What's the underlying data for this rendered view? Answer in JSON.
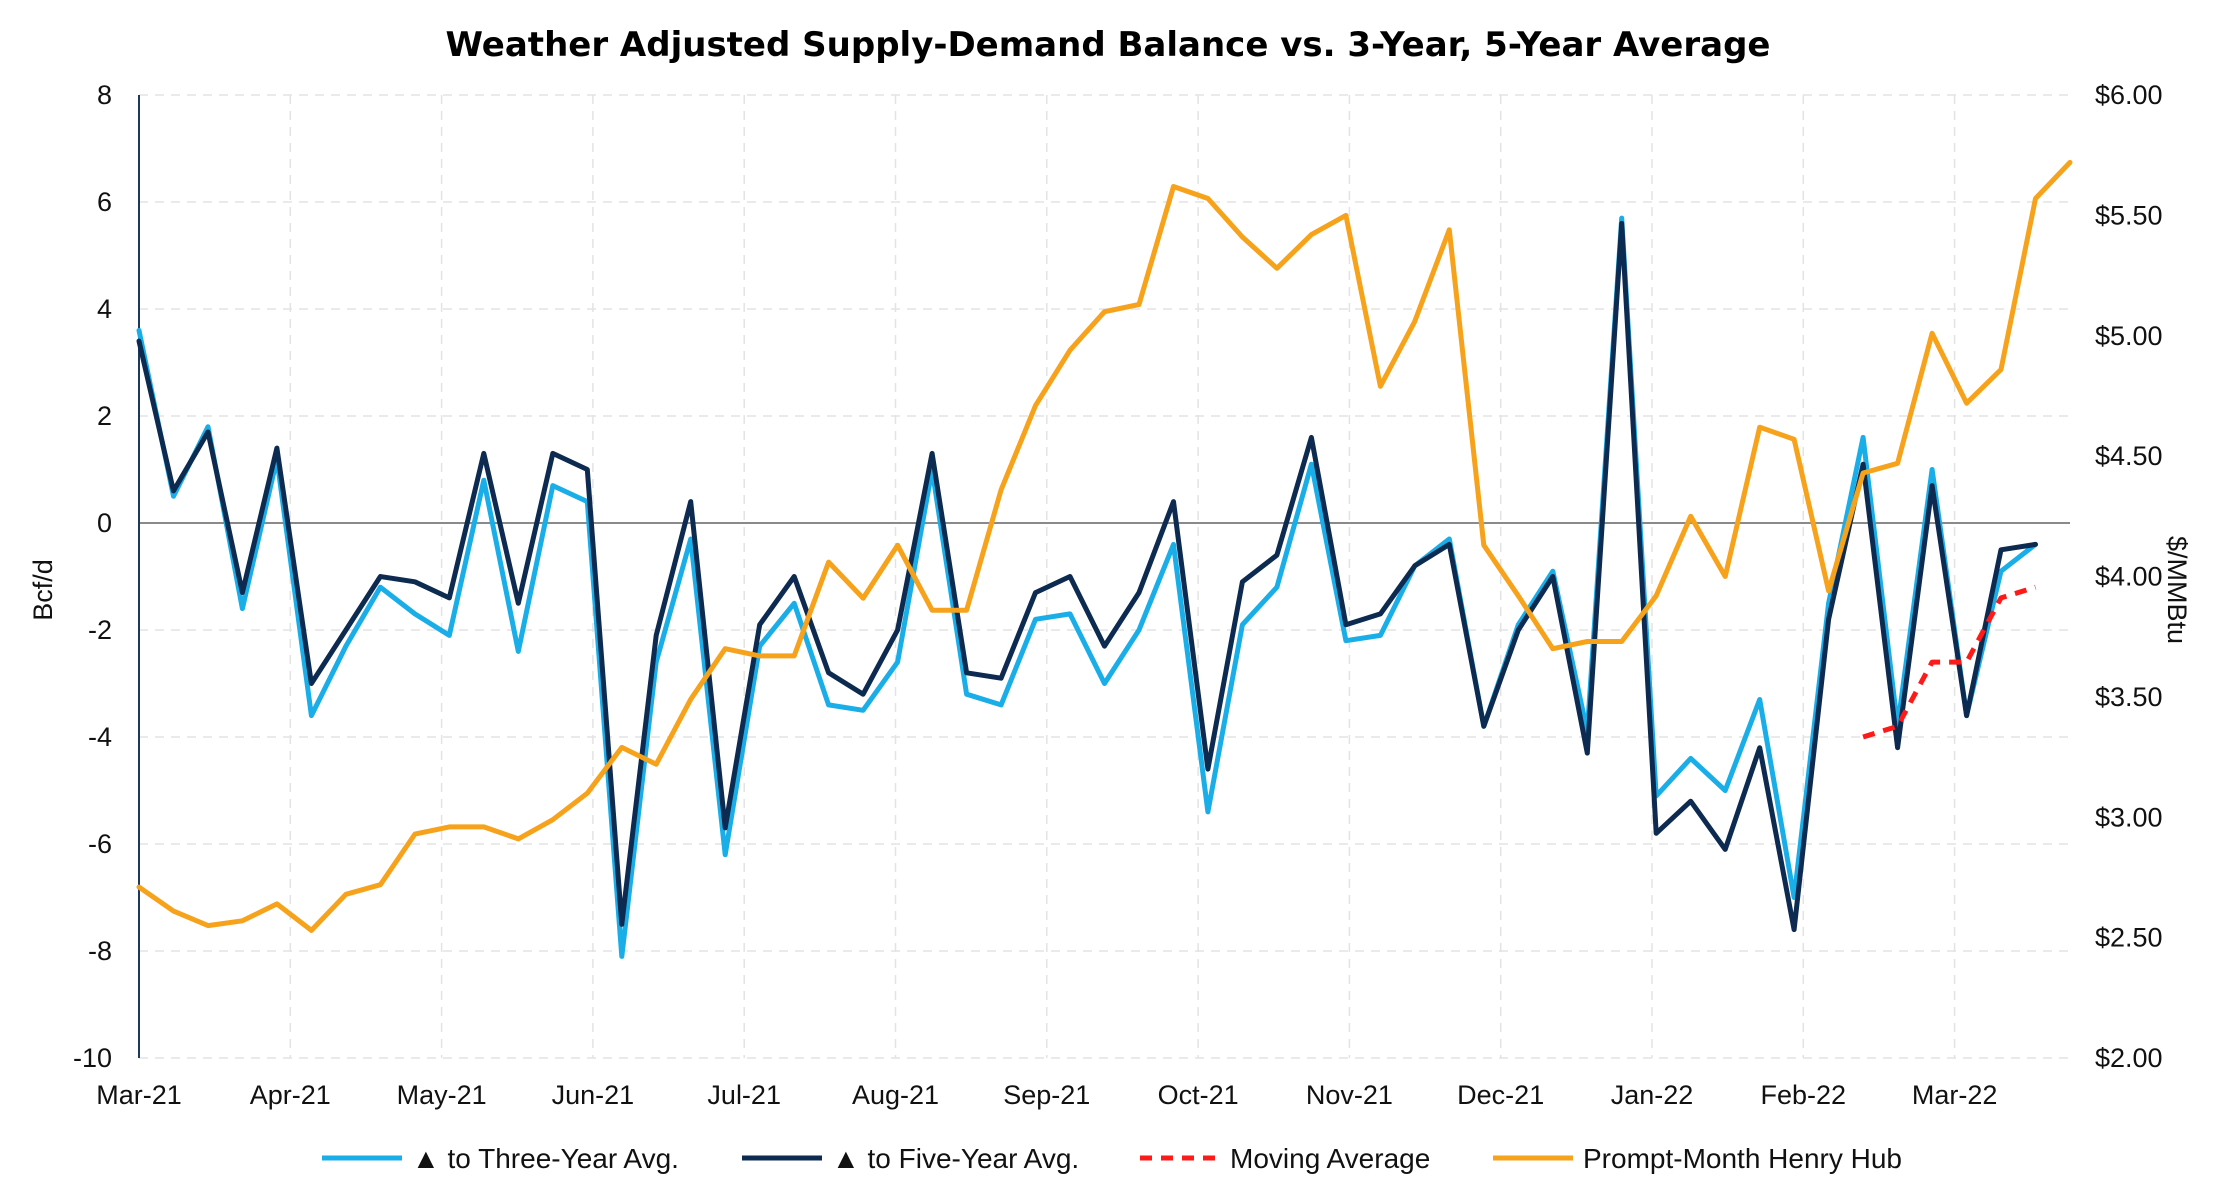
{
  "chart_data": {
    "type": "line",
    "title": "Weather Adjusted Supply-Demand Balance vs. 3-Year, 5-Year Average",
    "ylabel": "Bcf/d",
    "y2label": "$/MMBtu",
    "ylim": [
      -10,
      8
    ],
    "y2lim": [
      2.0,
      6.0
    ],
    "yticks": [
      "8",
      "6",
      "4",
      "2",
      "0",
      "-2",
      "-4",
      "-6",
      "-8",
      "-10"
    ],
    "y2ticks": [
      "$6.00",
      "$5.50",
      "$5.00",
      "$4.50",
      "$4.00",
      "$3.50",
      "$3.00",
      "$2.50",
      "$2.00"
    ],
    "xticks": [
      "Mar-21",
      "Apr-21",
      "May-21",
      "Jun-21",
      "Jul-21",
      "Aug-21",
      "Sep-21",
      "Oct-21",
      "Nov-21",
      "Dec-21",
      "Jan-22",
      "Feb-22",
      "Mar-22"
    ],
    "grid": true,
    "legend_position": "bottom",
    "series": [
      {
        "name": "▲ to Three-Year Avg.",
        "axis": "left",
        "color": "#1aaee8",
        "style": "solid",
        "values": [
          3.6,
          0.5,
          1.8,
          -1.6,
          1.2,
          -3.6,
          -2.3,
          -1.2,
          -1.7,
          -2.1,
          0.8,
          -2.4,
          0.7,
          0.4,
          -8.1,
          -2.6,
          -0.3,
          -6.2,
          -2.3,
          -1.5,
          -3.4,
          -3.5,
          -2.6,
          1.0,
          -3.2,
          -3.4,
          -1.8,
          -1.7,
          -3.0,
          -2.0,
          -0.4,
          -5.4,
          -1.9,
          -1.2,
          1.1,
          -2.2,
          -2.1,
          -0.8,
          -0.3,
          -3.8,
          -1.9,
          -0.9,
          -3.9,
          5.7,
          -5.1,
          -4.4,
          -5.0,
          -3.3,
          -7.0,
          -1.5,
          1.6,
          -3.8,
          1.0,
          -3.6,
          -0.9,
          -0.4
        ]
      },
      {
        "name": "▲ to Five-Year Avg.",
        "axis": "left",
        "color": "#0d2a50",
        "style": "solid",
        "values": [
          3.4,
          0.6,
          1.7,
          -1.3,
          1.4,
          -3.0,
          -2.0,
          -1.0,
          -1.1,
          -1.4,
          1.3,
          -1.5,
          1.3,
          1.0,
          -7.5,
          -2.1,
          0.4,
          -5.7,
          -1.9,
          -1.0,
          -2.8,
          -3.2,
          -2.0,
          1.3,
          -2.8,
          -2.9,
          -1.3,
          -1.0,
          -2.3,
          -1.3,
          0.4,
          -4.6,
          -1.1,
          -0.6,
          1.6,
          -1.9,
          -1.7,
          -0.8,
          -0.4,
          -3.8,
          -2.0,
          -1.0,
          -4.3,
          5.6,
          -5.8,
          -5.2,
          -6.1,
          -4.2,
          -7.6,
          -1.8,
          1.1,
          -4.2,
          0.7,
          -3.6,
          -0.5,
          -0.4
        ]
      },
      {
        "name": "Moving Average",
        "axis": "left",
        "color": "#ff1a1a",
        "style": "dashed",
        "start_index": 50,
        "values": [
          -4.0,
          -3.8,
          -2.6,
          -2.6,
          -1.4,
          -1.2
        ]
      },
      {
        "name": "Prompt-Month Henry Hub",
        "axis": "right",
        "color": "#f7a21b",
        "style": "solid",
        "values": [
          2.71,
          2.61,
          2.55,
          2.57,
          2.64,
          2.53,
          2.68,
          2.72,
          2.93,
          2.96,
          2.96,
          2.91,
          2.99,
          3.1,
          3.29,
          3.22,
          3.49,
          3.7,
          3.67,
          3.67,
          4.06,
          3.91,
          4.13,
          3.86,
          3.86,
          4.36,
          4.71,
          4.94,
          5.1,
          5.13,
          5.62,
          5.57,
          5.41,
          5.28,
          5.42,
          5.5,
          4.79,
          5.06,
          5.44,
          4.13,
          3.92,
          3.7,
          3.73,
          3.73,
          3.92,
          4.25,
          4.0,
          4.62,
          4.57,
          3.94,
          4.43,
          4.47,
          5.01,
          4.72,
          4.86,
          5.57,
          5.72
        ]
      }
    ]
  }
}
